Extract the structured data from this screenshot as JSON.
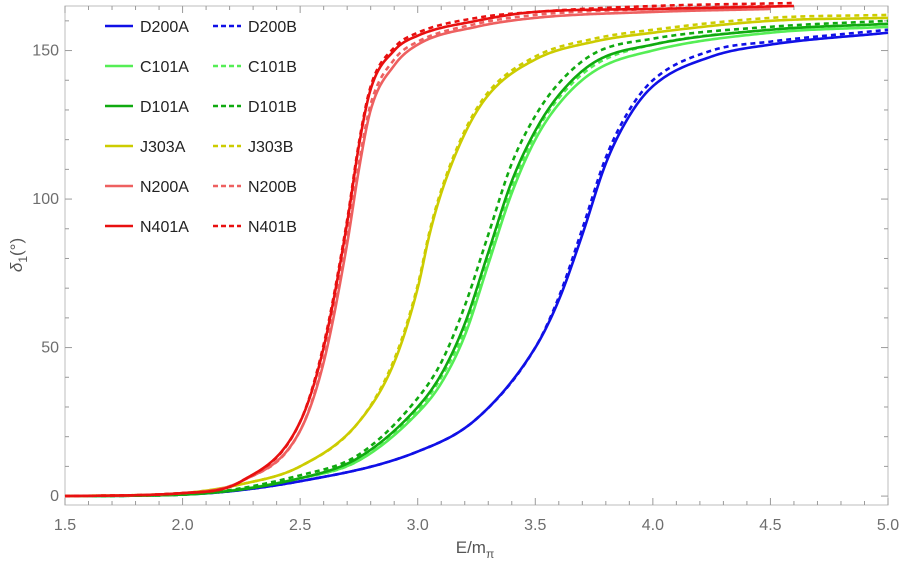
{
  "chart_data": {
    "type": "line",
    "title": "",
    "xlabel": "E/m",
    "xlabel_sub": "π",
    "ylabel": "δ",
    "ylabel_sub": "1",
    "ylabel_suffix": "(°)",
    "xlim": [
      1.5,
      5.0
    ],
    "ylim": [
      -3,
      165
    ],
    "x_ticks": [
      1.5,
      2.0,
      2.5,
      3.0,
      3.5,
      4.0,
      4.5,
      5.0
    ],
    "x_tick_labels": [
      "1.5",
      "2.0",
      "2.5",
      "3.0",
      "3.5",
      "4.0",
      "4.5",
      "5.0"
    ],
    "y_ticks": [
      0,
      50,
      100,
      150
    ],
    "y_tick_labels": [
      "0",
      "50",
      "100",
      "150"
    ],
    "grid": false,
    "legend_position": "top-left",
    "series": [
      {
        "name": "D200A",
        "color": "#1010e6",
        "dash": "solid",
        "x_end": 5.0,
        "x": [
          1.5,
          2.0,
          2.5,
          3.0,
          3.25,
          3.5,
          3.6,
          3.7,
          3.8,
          3.9,
          4.0,
          4.25,
          4.5,
          5.0
        ],
        "y": [
          0,
          0.5,
          5,
          15,
          26,
          50,
          66,
          88,
          112,
          128,
          138,
          148,
          152,
          156
        ]
      },
      {
        "name": "D200B",
        "color": "#1010e6",
        "dash": "dotted",
        "x_end": 5.0,
        "x": [
          1.5,
          2.0,
          2.5,
          3.0,
          3.25,
          3.5,
          3.6,
          3.7,
          3.8,
          3.9,
          4.0,
          4.25,
          4.5,
          5.0
        ],
        "y": [
          0,
          0.5,
          5,
          15,
          26,
          50,
          67,
          90,
          114,
          130,
          140,
          150,
          153,
          157
        ]
      },
      {
        "name": "C101A",
        "color": "#55ee55",
        "dash": "solid",
        "x_end": 5.0,
        "x": [
          1.5,
          2.0,
          2.5,
          2.75,
          3.0,
          3.1,
          3.2,
          3.3,
          3.4,
          3.5,
          3.6,
          3.75,
          4.0,
          4.5,
          5.0
        ],
        "y": [
          0,
          0.5,
          6,
          12,
          28,
          38,
          54,
          78,
          102,
          120,
          132,
          143,
          150,
          156,
          158
        ]
      },
      {
        "name": "C101B",
        "color": "#55ee55",
        "dash": "dotted",
        "x_end": 5.0,
        "x": [
          1.5,
          2.0,
          2.5,
          2.75,
          3.0,
          3.1,
          3.2,
          3.3,
          3.4,
          3.5,
          3.6,
          3.75,
          4.0,
          4.5,
          5.0
        ],
        "y": [
          0,
          0.5,
          6,
          12,
          29,
          40,
          56,
          80,
          104,
          122,
          134,
          145,
          152,
          157,
          159
        ]
      },
      {
        "name": "D101A",
        "color": "#10aa10",
        "dash": "solid",
        "x_end": 5.0,
        "x": [
          1.5,
          2.0,
          2.5,
          2.75,
          3.0,
          3.1,
          3.2,
          3.3,
          3.4,
          3.5,
          3.6,
          3.75,
          4.0,
          4.5,
          5.0
        ],
        "y": [
          0,
          0.5,
          6,
          13,
          30,
          41,
          58,
          82,
          106,
          123,
          135,
          146,
          152,
          157,
          159
        ]
      },
      {
        "name": "D101B",
        "color": "#10aa10",
        "dash": "dotted",
        "x_end": 5.0,
        "x": [
          1.5,
          2.0,
          2.5,
          2.75,
          3.0,
          3.1,
          3.2,
          3.3,
          3.4,
          3.5,
          3.6,
          3.75,
          4.0,
          4.5,
          5.0
        ],
        "y": [
          0,
          0.5,
          7,
          14,
          33,
          45,
          64,
          88,
          112,
          128,
          139,
          149,
          154,
          158,
          160
        ]
      },
      {
        "name": "J303A",
        "color": "#cccc00",
        "dash": "solid",
        "x_end": 5.0,
        "x": [
          1.5,
          2.0,
          2.25,
          2.5,
          2.75,
          2.9,
          3.0,
          3.05,
          3.1,
          3.2,
          3.3,
          3.5,
          3.75,
          4.0,
          4.5,
          5.0
        ],
        "y": [
          0,
          1,
          4,
          10,
          25,
          45,
          70,
          88,
          102,
          122,
          135,
          147,
          153,
          156,
          160,
          161
        ]
      },
      {
        "name": "J303B",
        "color": "#cccc00",
        "dash": "dotted",
        "x_end": 5.0,
        "x": [
          1.5,
          2.0,
          2.25,
          2.5,
          2.75,
          2.9,
          3.0,
          3.05,
          3.1,
          3.2,
          3.3,
          3.5,
          3.75,
          4.0,
          4.5,
          5.0
        ],
        "y": [
          0,
          1,
          4,
          10,
          25,
          46,
          71,
          89,
          103,
          123,
          136,
          148,
          154,
          157,
          161,
          162
        ]
      },
      {
        "name": "N200A",
        "color": "#ee6060",
        "dash": "solid",
        "x_end": 4.5,
        "x": [
          1.5,
          2.0,
          2.25,
          2.5,
          2.6,
          2.7,
          2.75,
          2.8,
          2.9,
          3.0,
          3.25,
          3.5,
          4.0,
          4.5
        ],
        "y": [
          0,
          1,
          5,
          22,
          45,
          85,
          110,
          130,
          145,
          152,
          158,
          161,
          163,
          164
        ]
      },
      {
        "name": "N200B",
        "color": "#ee6060",
        "dash": "dotted",
        "x_end": 4.5,
        "x": [
          1.5,
          2.0,
          2.25,
          2.5,
          2.6,
          2.7,
          2.75,
          2.8,
          2.9,
          3.0,
          3.25,
          3.5,
          4.0,
          4.5
        ],
        "y": [
          0,
          1,
          5,
          22,
          46,
          87,
          112,
          132,
          147,
          153,
          159,
          162,
          164,
          165
        ]
      },
      {
        "name": "N401A",
        "color": "#e81010",
        "dash": "solid",
        "x_end": 4.6,
        "x": [
          1.5,
          2.0,
          2.25,
          2.5,
          2.6,
          2.7,
          2.75,
          2.8,
          2.9,
          3.0,
          3.25,
          3.5,
          4.0,
          4.6
        ],
        "y": [
          0,
          1,
          5,
          25,
          50,
          92,
          118,
          137,
          150,
          155,
          160,
          163,
          164,
          165
        ]
      },
      {
        "name": "N401B",
        "color": "#e81010",
        "dash": "dotted",
        "x_end": 4.6,
        "x": [
          1.5,
          2.0,
          2.25,
          2.5,
          2.6,
          2.7,
          2.75,
          2.8,
          2.9,
          3.0,
          3.25,
          3.5,
          4.0,
          4.6
        ],
        "y": [
          0,
          1,
          5,
          25,
          51,
          93,
          119,
          138,
          151,
          156,
          161,
          163,
          165,
          166
        ]
      }
    ]
  }
}
